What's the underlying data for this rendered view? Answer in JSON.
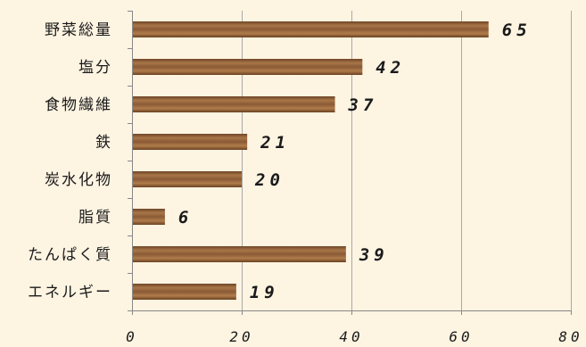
{
  "chart_data": {
    "type": "bar",
    "orientation": "horizontal",
    "categories": [
      "野菜総量",
      "塩分",
      "食物繊維",
      "鉄",
      "炭水化物",
      "脂質",
      "たんぱく質",
      "エネルギー"
    ],
    "values": [
      65,
      42,
      37,
      21,
      20,
      6,
      39,
      19
    ],
    "value_labels": [
      "65",
      "42",
      "37",
      "21",
      "20",
      "6",
      "39",
      "19"
    ],
    "xlim": [
      0,
      80
    ],
    "xticks": [
      0,
      20,
      40,
      60,
      80
    ],
    "xtick_labels": [
      "0",
      "20",
      "40",
      "60",
      "80"
    ],
    "grid": true,
    "bar_color": "#8a5a36",
    "background_color": "#fdf4e2"
  }
}
